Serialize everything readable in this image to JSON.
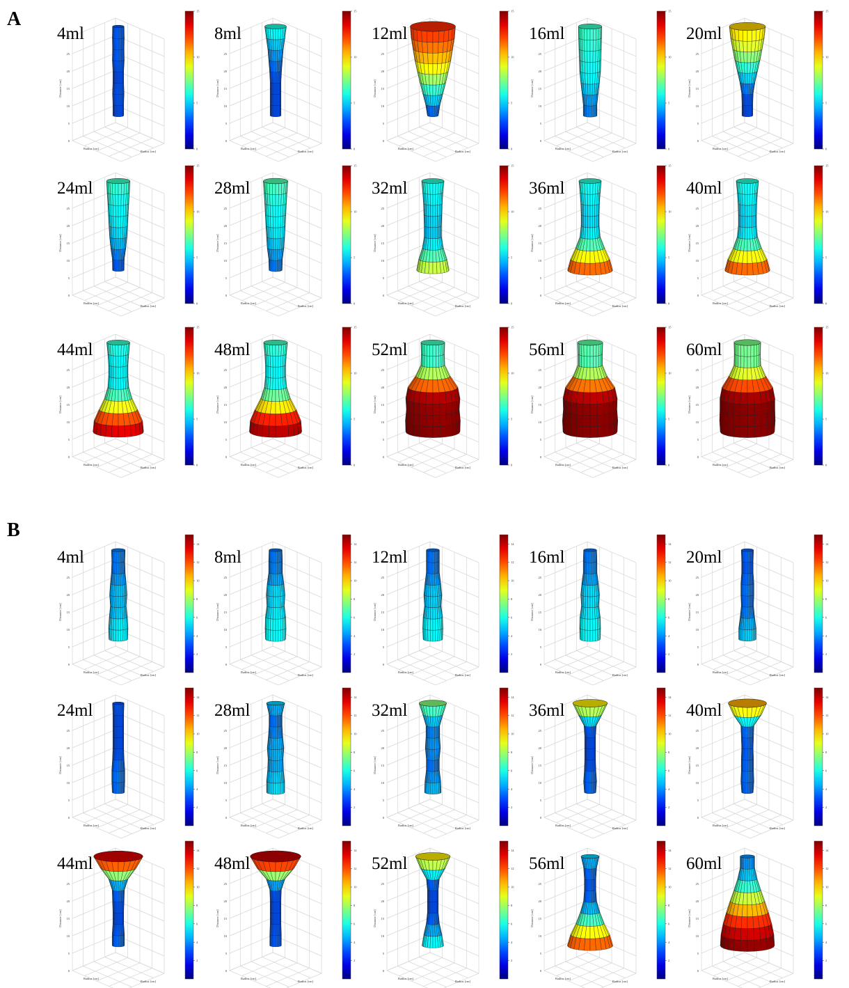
{
  "figure": {
    "panel_labels": [
      "A",
      "B"
    ],
    "colorbar_ticks_A": [
      "0",
      "5",
      "10",
      "15"
    ],
    "colorbar_ticks_B": [
      "2",
      "4",
      "6",
      "8",
      "10",
      "12",
      "14"
    ],
    "axis_label_z": "Distance [cm]",
    "axis_label_radius": "Radius [cm]"
  },
  "chart_data": [
    {
      "type": "surface3d",
      "panel": "A",
      "colormap": "jet",
      "clim": [
        0,
        15
      ],
      "volume_labels": [
        "4ml",
        "8ml",
        "12ml",
        "16ml",
        "20ml",
        "24ml",
        "28ml",
        "32ml",
        "36ml",
        "40ml",
        "44ml",
        "48ml",
        "52ml",
        "56ml",
        "60ml"
      ],
      "radius_profiles": [
        [
          3.0,
          3.0,
          3.2,
          3.0,
          3.0,
          3.3,
          3.2,
          3.3,
          3.2
        ],
        [
          3.0,
          3.0,
          3.0,
          3.0,
          3.3,
          3.8,
          4.3,
          5.2,
          6.0
        ],
        [
          3.0,
          4.0,
          5.6,
          7.2,
          8.6,
          10.0,
          11.0,
          12.0,
          12.5
        ],
        [
          3.8,
          3.8,
          4.5,
          5.2,
          5.8,
          6.0,
          6.2,
          6.4,
          6.5
        ],
        [
          3.0,
          3.0,
          3.2,
          4.2,
          5.6,
          7.0,
          8.2,
          9.3,
          10.0
        ],
        [
          3.2,
          3.3,
          4.2,
          4.8,
          5.2,
          5.5,
          5.8,
          6.2,
          6.5
        ],
        [
          3.6,
          3.8,
          4.6,
          5.0,
          5.4,
          5.7,
          6.0,
          6.4,
          6.8
        ],
        [
          9.0,
          7.8,
          5.8,
          4.8,
          4.8,
          5.0,
          5.2,
          5.6,
          6.2
        ],
        [
          12.5,
          10.8,
          8.0,
          5.6,
          5.0,
          5.0,
          5.2,
          5.6,
          6.2
        ],
        [
          12.5,
          10.8,
          7.8,
          5.6,
          5.0,
          5.0,
          5.2,
          5.6,
          6.2
        ],
        [
          14.0,
          13.4,
          10.6,
          7.6,
          5.8,
          5.4,
          5.4,
          5.8,
          6.4
        ],
        [
          14.5,
          14.0,
          11.4,
          8.2,
          6.2,
          5.6,
          5.6,
          6.0,
          6.6
        ],
        [
          15.0,
          15.2,
          14.6,
          15.0,
          13.8,
          9.6,
          6.6,
          6.4,
          6.6
        ],
        [
          15.0,
          15.3,
          14.8,
          15.0,
          13.6,
          9.4,
          6.8,
          6.8,
          7.0
        ],
        [
          15.0,
          15.4,
          15.2,
          15.2,
          14.0,
          10.2,
          7.4,
          7.2,
          7.4
        ]
      ],
      "max_distance": 30
    },
    {
      "type": "surface3d",
      "panel": "B",
      "colormap": "jet",
      "clim": [
        0,
        15
      ],
      "volume_labels": [
        "4ml",
        "8ml",
        "12ml",
        "16ml",
        "20ml",
        "24ml",
        "28ml",
        "32ml",
        "36ml",
        "40ml",
        "44ml",
        "48ml",
        "52ml",
        "56ml",
        "60ml"
      ],
      "radius_profiles": [
        [
          5.2,
          5.4,
          5.0,
          4.4,
          4.8,
          4.4,
          3.8,
          3.6,
          3.8
        ],
        [
          5.6,
          5.8,
          5.6,
          4.8,
          5.2,
          4.6,
          3.8,
          3.8,
          3.6
        ],
        [
          5.4,
          5.6,
          5.4,
          4.6,
          5.0,
          4.4,
          3.6,
          3.6,
          3.6
        ],
        [
          5.6,
          5.8,
          5.6,
          4.8,
          5.2,
          4.6,
          3.8,
          3.8,
          3.6
        ],
        [
          4.8,
          4.8,
          4.0,
          3.4,
          3.6,
          3.6,
          3.2,
          3.2,
          3.4
        ],
        [
          3.4,
          3.6,
          3.6,
          3.2,
          3.0,
          3.0,
          3.0,
          3.0,
          3.2
        ],
        [
          5.0,
          5.0,
          4.4,
          4.2,
          4.6,
          4.0,
          3.6,
          3.6,
          5.0
        ],
        [
          4.6,
          4.4,
          3.6,
          3.6,
          4.2,
          3.8,
          3.8,
          5.6,
          7.6
        ],
        [
          3.2,
          3.6,
          3.2,
          3.0,
          3.0,
          3.0,
          3.4,
          6.6,
          9.6
        ],
        [
          3.2,
          3.6,
          3.4,
          3.4,
          3.2,
          3.4,
          3.6,
          7.8,
          10.6
        ],
        [
          3.4,
          3.4,
          3.0,
          3.0,
          3.2,
          3.4,
          5.4,
          10.0,
          13.6
        ],
        [
          3.2,
          3.2,
          3.0,
          3.0,
          3.0,
          3.2,
          5.2,
          10.4,
          14.0
        ],
        [
          6.0,
          5.0,
          3.6,
          3.0,
          3.0,
          3.0,
          3.6,
          7.0,
          9.6
        ],
        [
          12.6,
          10.8,
          7.8,
          5.4,
          3.6,
          3.2,
          3.2,
          3.6,
          5.0
        ],
        [
          15.0,
          14.6,
          13.4,
          11.6,
          9.6,
          7.4,
          5.4,
          4.0,
          4.0
        ]
      ],
      "max_distance": 30
    }
  ]
}
